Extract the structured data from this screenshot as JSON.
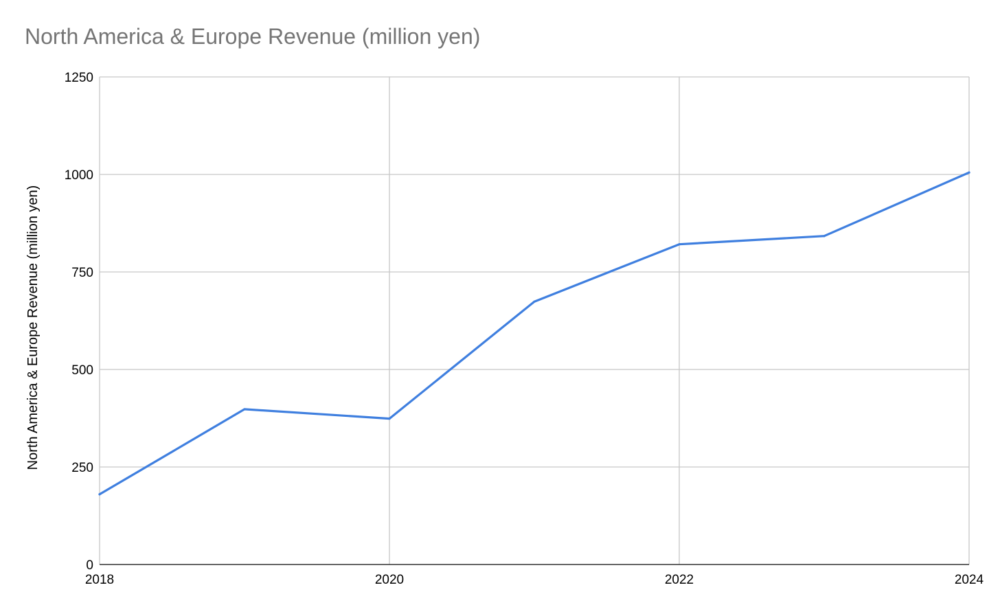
{
  "chart_data": {
    "type": "line",
    "title": "North America & Europe Revenue (million yen)",
    "xlabel": "",
    "ylabel": "North America & Europe Revenue (million yen)",
    "x": [
      2018,
      2019,
      2020,
      2021,
      2022,
      2023,
      2024
    ],
    "x_ticks": [
      "2018",
      "2020",
      "2022",
      "2024"
    ],
    "xlim": [
      2018,
      2024
    ],
    "y_ticks": [
      "0",
      "250",
      "500",
      "750",
      "1000",
      "1250"
    ],
    "ylim": [
      0,
      1250
    ],
    "series": [
      {
        "values": [
          180,
          398,
          374,
          674,
          821,
          842,
          1005
        ],
        "color": "#3f7fdf"
      }
    ],
    "grid": true,
    "legend": "none"
  }
}
